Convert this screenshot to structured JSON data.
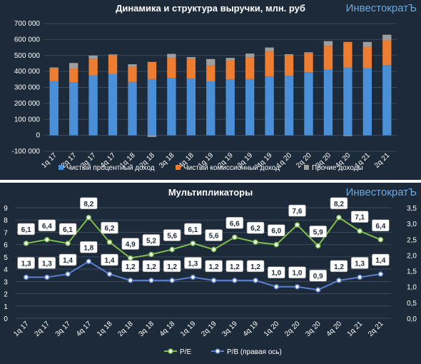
{
  "brand": "ИнвестократЪ",
  "chart_data": [
    {
      "type": "bar",
      "stacked": true,
      "title": "Динамика и структура выручки, млн. руб",
      "categories": [
        "1q 17",
        "2q 17",
        "3q 17",
        "4q 17",
        "1q 18",
        "2q 18",
        "3q 18",
        "4q 18",
        "1q 19",
        "2q 19",
        "3q 19",
        "4q 19",
        "1q 20",
        "2q 20",
        "3q 20",
        "4q 20",
        "1q 21",
        "2q 21"
      ],
      "series": [
        {
          "name": "Чистый процентный доход",
          "color": "#4a90d9",
          "values": [
            340000,
            333000,
            375000,
            385000,
            335000,
            352000,
            360000,
            355000,
            338000,
            350000,
            352000,
            370000,
            373000,
            395000,
            410000,
            425000,
            420000,
            440000
          ]
        },
        {
          "name": "Чистый комиссионный доход",
          "color": "#ed7d31",
          "values": [
            80000,
            85000,
            105000,
            117000,
            95000,
            108000,
            125000,
            125000,
            100000,
            120000,
            135000,
            155000,
            130000,
            120000,
            150000,
            160000,
            135000,
            155000
          ]
        },
        {
          "name": "Прочие доходы",
          "color": "#9e9e9e",
          "values": [
            5000,
            35000,
            20000,
            5000,
            15000,
            -10000,
            25000,
            10000,
            40000,
            15000,
            25000,
            25000,
            5000,
            5000,
            30000,
            -5000,
            30000,
            35000
          ]
        }
      ],
      "y_ticks": [
        "700 000",
        "600 000",
        "500 000",
        "400 000",
        "300 000",
        "200 000",
        "100 000",
        "0",
        "-100 000"
      ],
      "ylim": [
        -100000,
        700000
      ],
      "legend_position": "bottom"
    },
    {
      "type": "line",
      "title": "Мультипликаторы",
      "categories": [
        "1q 17",
        "2q 17",
        "3q 17",
        "4q 17",
        "1q 18",
        "2q 18",
        "3q 18",
        "4q 18",
        "1q 19",
        "2q 19",
        "3q 19",
        "4q 19",
        "1q 20",
        "2q 20",
        "3q 20",
        "4q 20",
        "1q 21",
        "2q 21"
      ],
      "series": [
        {
          "name": "P/E",
          "axis": "left",
          "color": "#7fbf4d",
          "values": [
            6.1,
            6.4,
            6.1,
            8.2,
            6.2,
            4.9,
            5.2,
            5.6,
            6.1,
            5.6,
            6.6,
            6.2,
            6.0,
            7.6,
            5.9,
            8.2,
            7.1,
            6.4
          ],
          "labels": [
            "6,1",
            "6,4",
            "6,1",
            "8,2",
            "6,2",
            "4,9",
            "5,2",
            "5,6",
            "6,1",
            "5,6",
            "6,6",
            "6,2",
            "6,0",
            "7,6",
            "5,9",
            "8,2",
            "7,1",
            "6,4"
          ]
        },
        {
          "name": "P/B (правая ось)",
          "axis": "right",
          "color": "#5b7fcf",
          "values": [
            1.3,
            1.3,
            1.4,
            1.8,
            1.4,
            1.2,
            1.2,
            1.2,
            1.3,
            1.2,
            1.2,
            1.2,
            1.0,
            1.0,
            0.9,
            1.2,
            1.3,
            1.4
          ],
          "labels": [
            "1,3",
            "1,3",
            "1,4",
            "1,8",
            "1,4",
            "1,2",
            "1,2",
            "1,2",
            "1,3",
            "1,2",
            "1,2",
            "1,2",
            "1,0",
            "1,0",
            "0,9",
            "1,2",
            "1,3",
            "1,4"
          ]
        }
      ],
      "y_left_ticks": [
        "9",
        "8",
        "7",
        "6",
        "5",
        "4",
        "3",
        "2",
        "1",
        "0"
      ],
      "y_left_lim": [
        0,
        9
      ],
      "y_right_ticks": [
        "3,5",
        "3,0",
        "2,5",
        "2,0",
        "1,5",
        "1,0",
        "0,5",
        "0,0"
      ],
      "y_right_lim": [
        0,
        3.5
      ],
      "legend_position": "bottom"
    }
  ]
}
